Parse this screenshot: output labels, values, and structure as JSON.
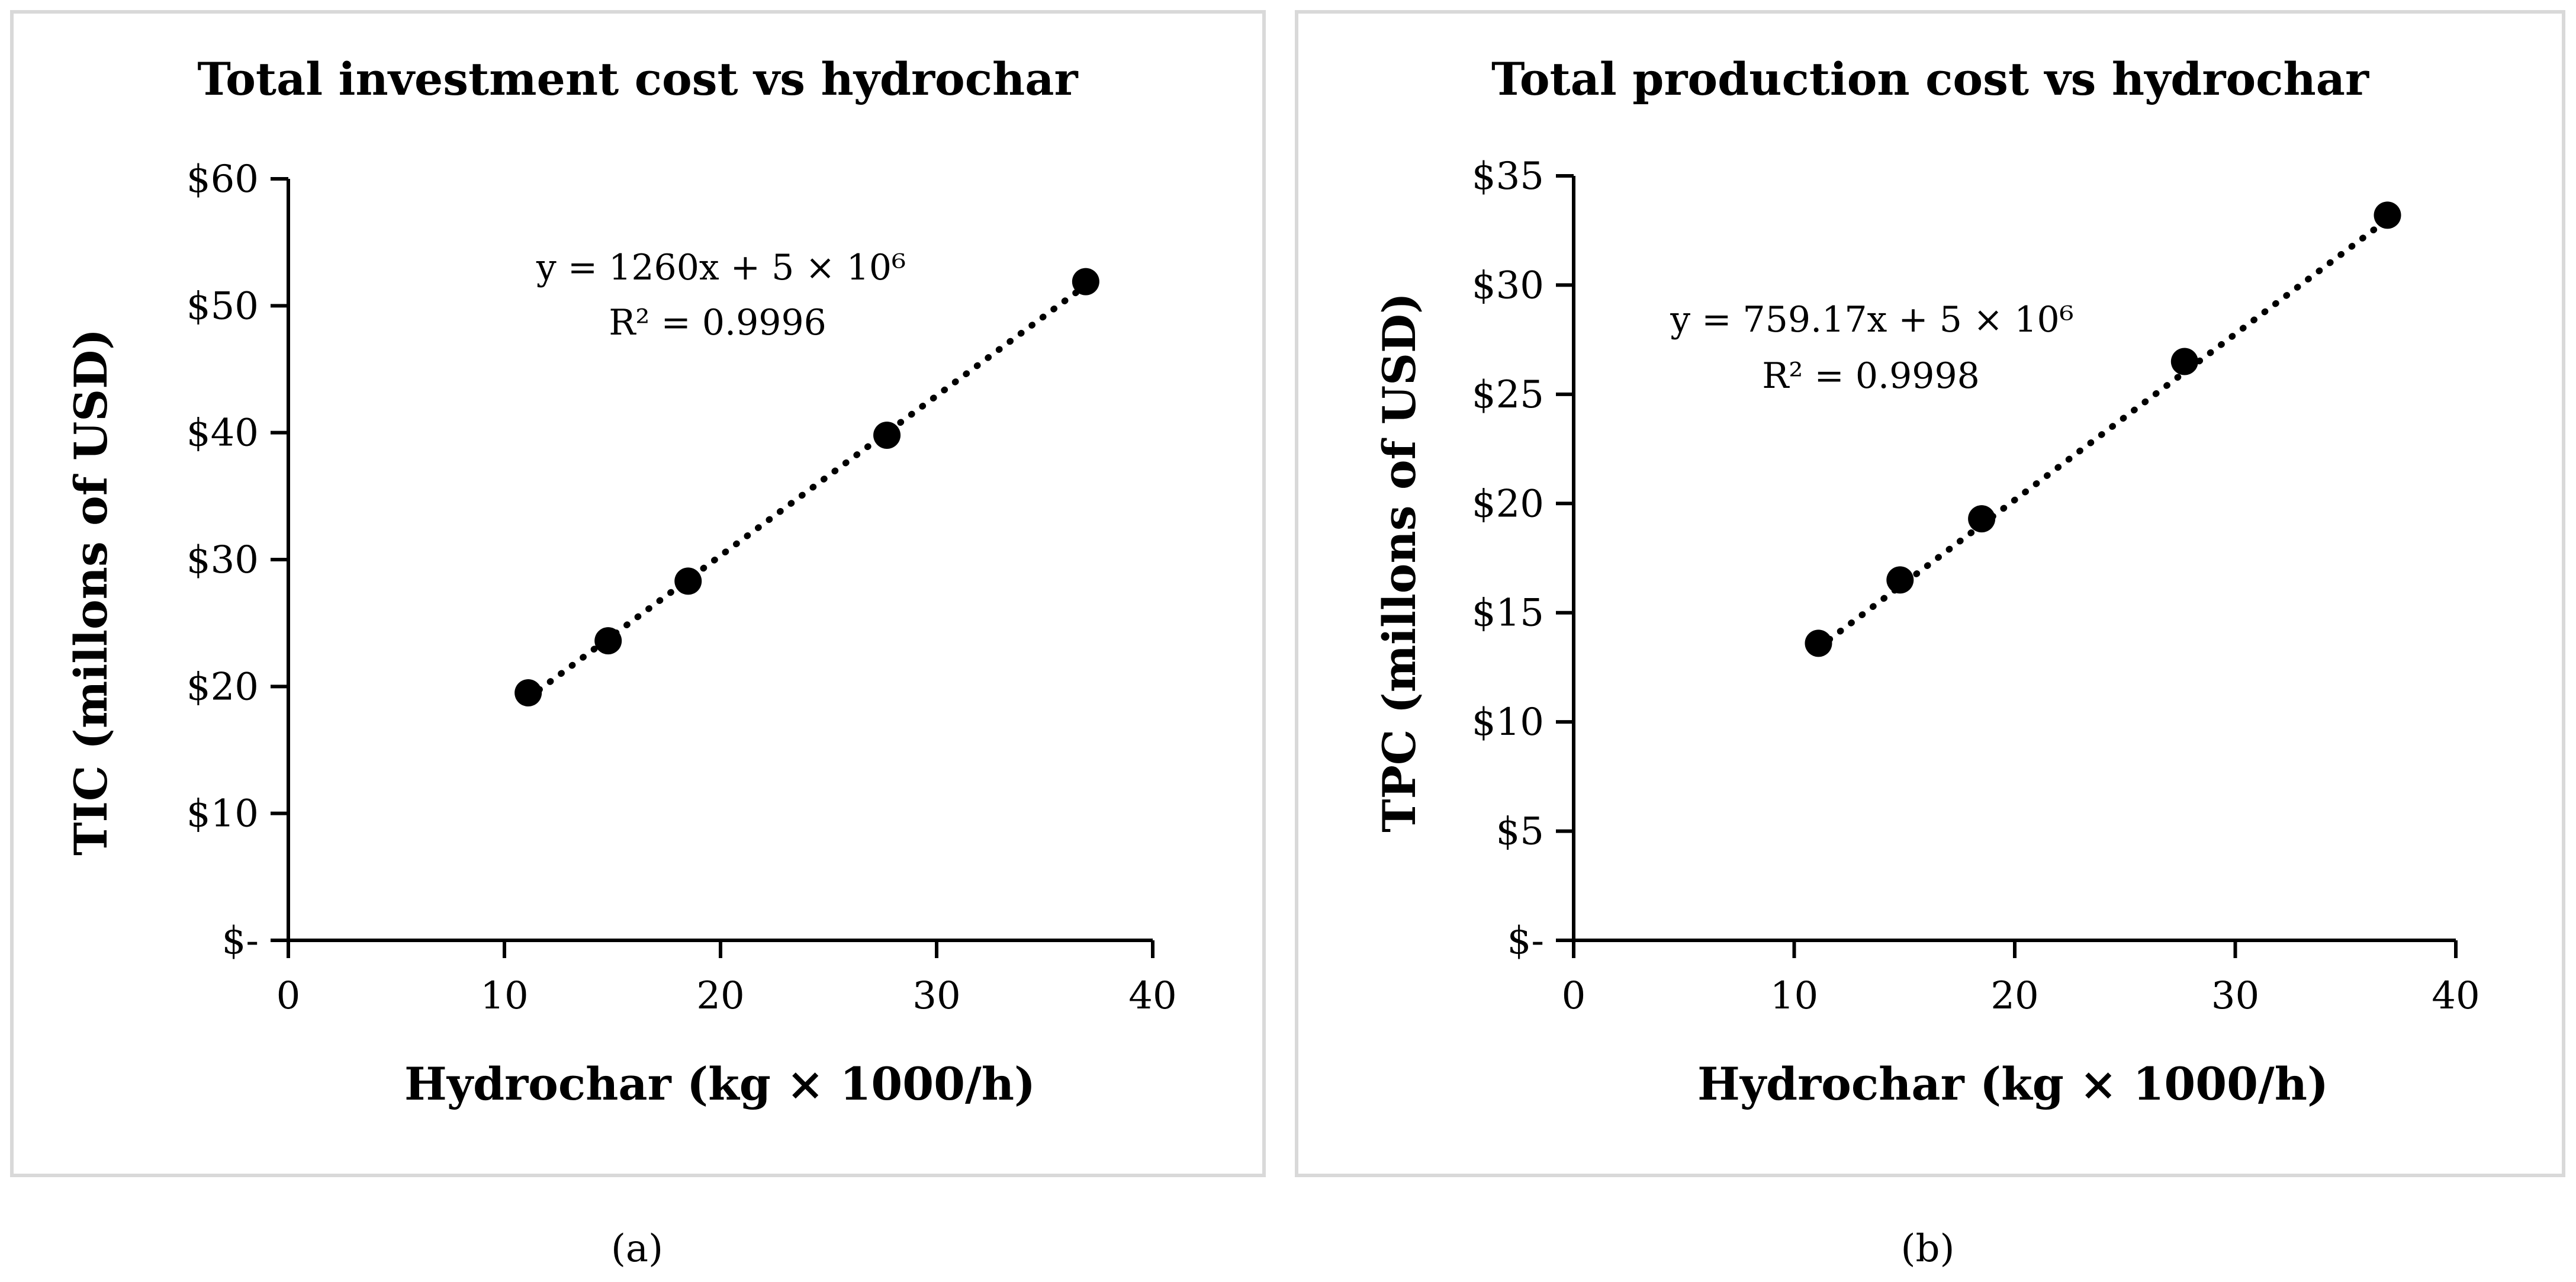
{
  "chart_data": [
    {
      "type": "scatter",
      "title": "Total investment cost vs hydrochar",
      "xlabel": "Hydrochar (kg × 1000/h)",
      "ylabel": "TIC (millons of USD)",
      "xlim": [
        0,
        40
      ],
      "ylim": [
        0,
        60
      ],
      "xticks": [
        0,
        10,
        20,
        30,
        40
      ],
      "yticks": [
        0,
        10,
        20,
        30,
        40,
        50,
        60
      ],
      "ytick_labels": [
        "$-",
        "$10",
        "$20",
        "$30",
        "$40",
        "$50",
        "$60"
      ],
      "series": [
        {
          "name": "TIC",
          "x": [
            11.1,
            14.8,
            18.5,
            27.7,
            36.9
          ],
          "y": [
            19.5,
            23.6,
            28.3,
            39.8,
            51.9
          ]
        }
      ],
      "trendline": {
        "style": "dotted",
        "x_start": 11.1,
        "x_end": 36.9,
        "y_start": 19.1,
        "y_end": 51.6
      },
      "annotation": {
        "equation": "y = 1260x + 5 × 10⁶",
        "r2": "R² = 0.9996"
      },
      "grid": false,
      "caption": "(a)"
    },
    {
      "type": "scatter",
      "title": "Total production cost vs hydrochar",
      "xlabel": "Hydrochar (kg × 1000/h)",
      "ylabel": "TPC (millons of USD)",
      "xlim": [
        0,
        40
      ],
      "ylim": [
        0,
        35
      ],
      "xticks": [
        0,
        10,
        20,
        30,
        40
      ],
      "yticks": [
        0,
        5,
        10,
        15,
        20,
        25,
        30,
        35
      ],
      "ytick_labels": [
        "$-",
        "$5",
        "$10",
        "$15",
        "$20",
        "$25",
        "$30",
        "$35"
      ],
      "series": [
        {
          "name": "TPC",
          "x": [
            11.1,
            14.8,
            18.5,
            27.7,
            36.9
          ],
          "y": [
            13.6,
            16.5,
            19.3,
            26.5,
            33.2
          ]
        }
      ],
      "trendline": {
        "style": "dotted",
        "x_start": 11.1,
        "x_end": 36.9,
        "y_start": 13.4,
        "y_end": 33.0
      },
      "annotation": {
        "equation": "y = 759.17x + 5 × 10⁶",
        "r2": "R² = 0.9998"
      },
      "grid": false,
      "caption": "(b)"
    }
  ]
}
